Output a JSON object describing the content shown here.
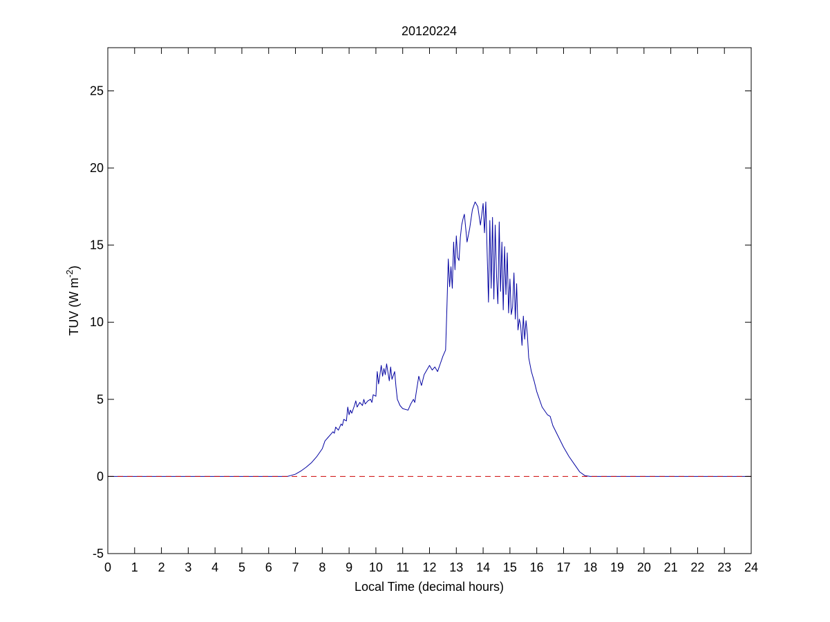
{
  "chart_data": {
    "type": "line",
    "title": "20120224",
    "xlabel": "Local Time (decimal hours)",
    "ylabel_main": "TUV (W m",
    "ylabel_sup": "-2",
    "ylabel_close": ")",
    "xlim": [
      0,
      24
    ],
    "ylim": [
      -5,
      27.8
    ],
    "grid": false,
    "xticks": [
      "0",
      "1",
      "2",
      "3",
      "4",
      "5",
      "6",
      "7",
      "8",
      "9",
      "10",
      "11",
      "12",
      "13",
      "14",
      "15",
      "16",
      "17",
      "18",
      "19",
      "20",
      "21",
      "22",
      "23",
      "24"
    ],
    "yticks": [
      "-5",
      "0",
      "5",
      "10",
      "15",
      "20",
      "25"
    ],
    "colors": {
      "series": "#0000a0",
      "reference": "#cc0000",
      "axes": "#000000"
    },
    "series": [
      {
        "style": "solid",
        "x": [
          0,
          6.7,
          6.8,
          7.0,
          7.2,
          7.4,
          7.6,
          7.8,
          8.0,
          8.1,
          8.2,
          8.3,
          8.4,
          8.45,
          8.5,
          8.6,
          8.7,
          8.75,
          8.8,
          8.9,
          8.95,
          9.0,
          9.05,
          9.1,
          9.2,
          9.25,
          9.3,
          9.4,
          9.5,
          9.55,
          9.6,
          9.7,
          9.8,
          9.85,
          9.9,
          10.0,
          10.05,
          10.1,
          10.2,
          10.25,
          10.3,
          10.35,
          10.4,
          10.5,
          10.55,
          10.6,
          10.7,
          10.75,
          10.8,
          10.9,
          10.95,
          11.0,
          11.2,
          11.3,
          11.4,
          11.45,
          11.5,
          11.6,
          11.7,
          11.8,
          11.9,
          12.0,
          12.1,
          12.2,
          12.3,
          12.4,
          12.5,
          12.6,
          12.65,
          12.7,
          12.75,
          12.8,
          12.85,
          12.9,
          12.95,
          13.0,
          13.05,
          13.1,
          13.15,
          13.2,
          13.25,
          13.3,
          13.4,
          13.5,
          13.6,
          13.7,
          13.8,
          13.9,
          14.0,
          14.05,
          14.1,
          14.15,
          14.2,
          14.25,
          14.3,
          14.35,
          14.4,
          14.45,
          14.5,
          14.55,
          14.6,
          14.65,
          14.7,
          14.75,
          14.8,
          14.85,
          14.9,
          14.95,
          15.0,
          15.05,
          15.1,
          15.15,
          15.2,
          15.25,
          15.3,
          15.35,
          15.4,
          15.45,
          15.5,
          15.55,
          15.6,
          15.65,
          15.7,
          15.8,
          15.9,
          16.0,
          16.2,
          16.4,
          16.5,
          16.6,
          16.8,
          17.0,
          17.2,
          17.4,
          17.6,
          17.8,
          18.0,
          18.2,
          18.5,
          24
        ],
        "y": [
          0,
          0,
          0.05,
          0.15,
          0.35,
          0.6,
          0.9,
          1.3,
          1.8,
          2.3,
          2.5,
          2.7,
          2.9,
          2.8,
          3.2,
          3.0,
          3.4,
          3.3,
          3.7,
          3.6,
          4.5,
          4.0,
          4.3,
          4.1,
          4.6,
          4.9,
          4.5,
          4.8,
          4.6,
          5.0,
          4.7,
          4.9,
          5.0,
          4.8,
          5.3,
          5.2,
          6.8,
          6.0,
          7.2,
          6.5,
          7.0,
          6.6,
          7.3,
          6.2,
          7.1,
          6.3,
          6.8,
          5.8,
          5.0,
          4.6,
          4.5,
          4.4,
          4.3,
          4.7,
          5.0,
          4.8,
          5.4,
          6.5,
          5.9,
          6.6,
          6.9,
          7.2,
          6.9,
          7.1,
          6.8,
          7.3,
          7.8,
          8.2,
          11.0,
          14.1,
          12.3,
          13.6,
          12.2,
          15.2,
          13.4,
          15.6,
          14.2,
          14.0,
          15.5,
          16.3,
          16.7,
          17.0,
          15.2,
          16.1,
          17.3,
          17.8,
          17.5,
          16.3,
          17.7,
          15.8,
          17.8,
          14.5,
          11.3,
          16.6,
          12.2,
          16.8,
          11.5,
          16.3,
          13.0,
          11.2,
          16.5,
          12.0,
          15.2,
          10.8,
          14.9,
          11.8,
          14.5,
          10.6,
          12.8,
          10.5,
          11.0,
          13.2,
          10.2,
          12.5,
          9.5,
          10.2,
          9.8,
          8.5,
          10.4,
          8.9,
          10.1,
          9.2,
          7.7,
          6.8,
          6.2,
          5.5,
          4.5,
          4.0,
          3.9,
          3.3,
          2.6,
          1.9,
          1.3,
          0.8,
          0.3,
          0.05,
          0,
          0,
          0,
          0
        ]
      },
      {
        "style": "dashed",
        "x": [
          0,
          24
        ],
        "y": [
          0,
          0
        ]
      }
    ]
  }
}
